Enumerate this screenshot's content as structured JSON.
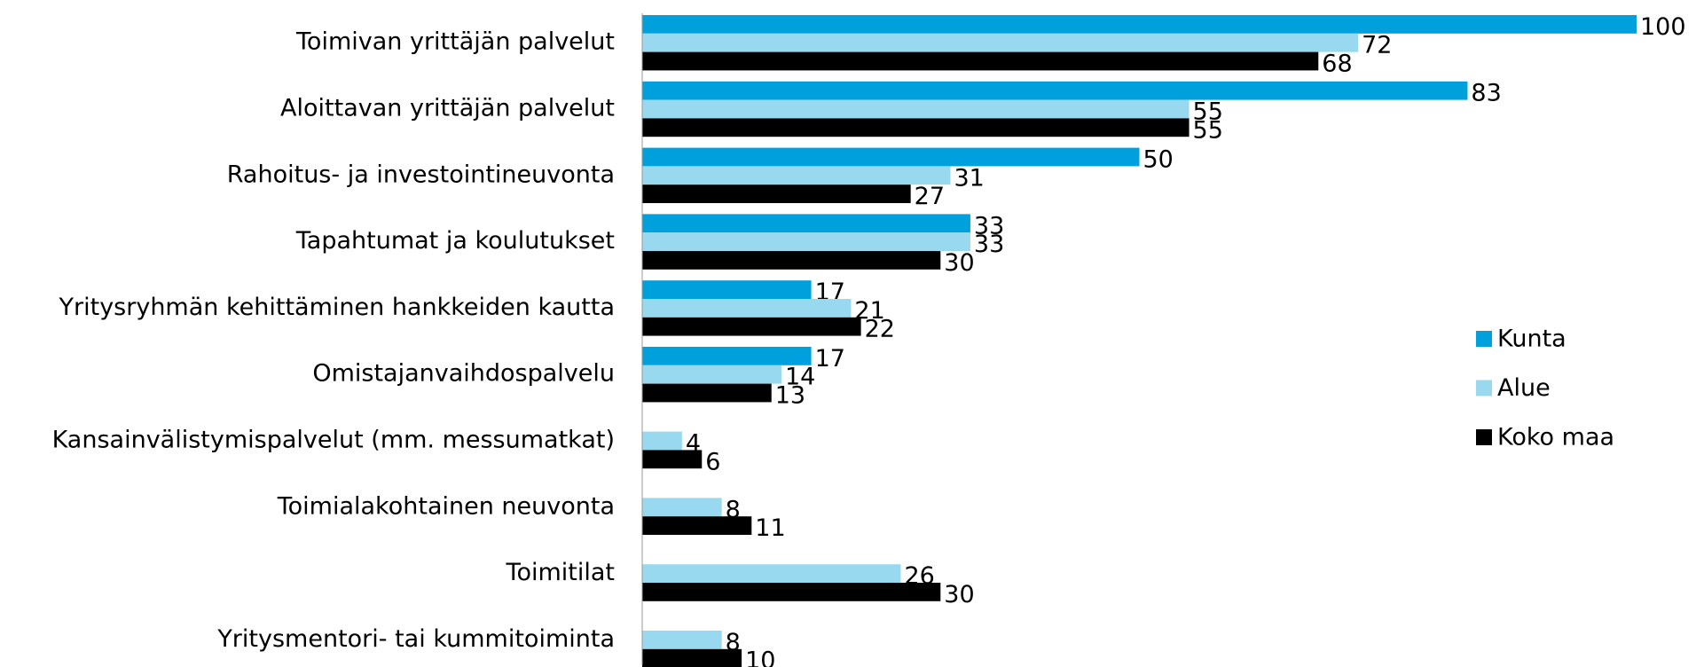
{
  "chart_data": {
    "type": "bar",
    "orientation": "horizontal",
    "categories": [
      "Toimivan yrittäjän palvelut",
      "Aloittavan yrittäjän palvelut",
      "Rahoitus- ja investointineuvonta",
      "Tapahtumat ja koulutukset",
      "Yritysryhmän kehittäminen hankkeiden kautta",
      "Omistajanvaihdospalvelu",
      "Kansainvälistymispalvelut (mm. messumatkat)",
      "Toimialakohtainen neuvonta",
      "Toimitilat",
      "Yritysmentori- tai kummitoiminta"
    ],
    "series": [
      {
        "name": "Kunta",
        "color": "#00a0dc",
        "values": [
          100,
          83,
          50,
          33,
          17,
          17,
          null,
          null,
          null,
          null
        ]
      },
      {
        "name": "Alue",
        "color": "#99d9f0",
        "values": [
          72,
          55,
          31,
          33,
          21,
          14,
          4,
          8,
          26,
          8
        ]
      },
      {
        "name": "Koko maa",
        "color": "#000000",
        "values": [
          68,
          55,
          27,
          30,
          22,
          13,
          6,
          11,
          30,
          10
        ]
      }
    ],
    "legend": "right"
  }
}
